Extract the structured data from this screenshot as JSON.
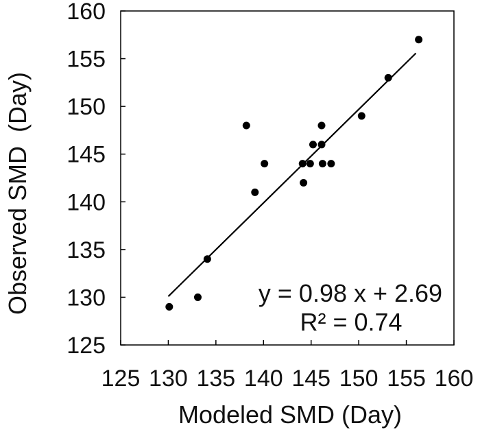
{
  "chart_data": {
    "type": "scatter",
    "title": "",
    "xlabel": "Modeled SMD (Day)",
    "ylabel": "Observed SMD  (Day)",
    "xlim": [
      125,
      160
    ],
    "ylim": [
      125,
      160
    ],
    "xticks": [
      "125",
      "130",
      "135",
      "140",
      "145",
      "150",
      "155",
      "160"
    ],
    "yticks": [
      "125",
      "130",
      "135",
      "140",
      "145",
      "150",
      "155",
      "160"
    ],
    "grid": false,
    "series": [
      {
        "points": [
          {
            "x": 130.1,
            "y": 129
          },
          {
            "x": 133.1,
            "y": 130
          },
          {
            "x": 134.1,
            "y": 134
          },
          {
            "x": 138.2,
            "y": 148
          },
          {
            "x": 139.1,
            "y": 141
          },
          {
            "x": 140.1,
            "y": 144
          },
          {
            "x": 144.1,
            "y": 144
          },
          {
            "x": 144.2,
            "y": 142
          },
          {
            "x": 144.9,
            "y": 144
          },
          {
            "x": 145.2,
            "y": 146
          },
          {
            "x": 146.1,
            "y": 148
          },
          {
            "x": 146.1,
            "y": 146
          },
          {
            "x": 146.2,
            "y": 144
          },
          {
            "x": 147.1,
            "y": 144
          },
          {
            "x": 150.3,
            "y": 149
          },
          {
            "x": 153.1,
            "y": 153
          },
          {
            "x": 156.3,
            "y": 157
          }
        ]
      }
    ],
    "trendline": {
      "slope": 0.98,
      "intercept": 2.69,
      "x_range": [
        130,
        156
      ]
    },
    "annotations": {
      "equation": "y = 0.98 x + 2.69",
      "r_squared": "R² = 0.74"
    },
    "colors": {
      "marker": "#000000",
      "line": "#000000",
      "axis": "#000000"
    }
  }
}
